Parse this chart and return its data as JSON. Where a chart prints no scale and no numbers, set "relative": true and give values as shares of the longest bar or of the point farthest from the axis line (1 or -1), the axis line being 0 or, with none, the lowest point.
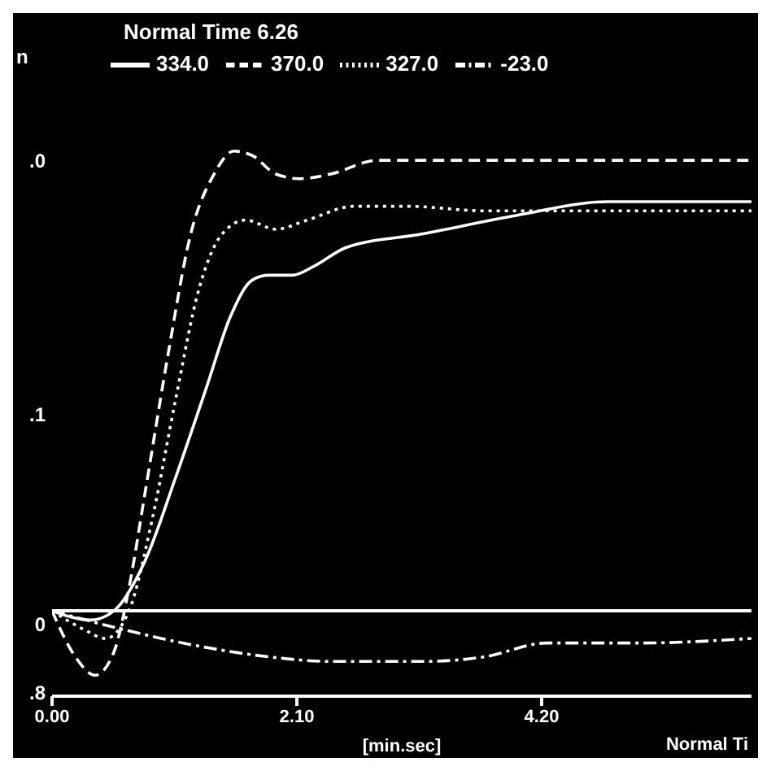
{
  "chart_data": {
    "type": "line",
    "title": "Normal Time 6.26",
    "xlabel": "[min.sec]",
    "ylabel": "n",
    "relative": true,
    "legend": "top",
    "grid": false,
    "marker": "none",
    "xlim": [
      0,
      6.0
    ],
    "xticks": [
      {
        "value": 0,
        "label": "0.00"
      },
      {
        "value": 2.1,
        "label": "2.10"
      },
      {
        "value": 4.2,
        "label": "4.20"
      }
    ],
    "ref_lines": [
      {
        "axis": "y",
        "value": 0,
        "label": null,
        "color": "#ffffff",
        "line_style": "solid"
      }
    ],
    "annotations": [
      ".0",
      ".1",
      "0",
      ".8",
      "Normal Ti"
    ],
    "series": [
      {
        "name": "334.0",
        "color": "#ffffff",
        "line_style": "solid",
        "x": [
          0,
          0.33,
          0.53,
          0.8,
          1.06,
          1.33,
          1.53,
          1.72,
          1.86,
          2.06,
          2.25,
          2.52,
          3.18,
          3.98,
          4.77,
          6.0
        ],
        "values": [
          0,
          -0.02,
          0,
          0.11,
          0.29,
          0.49,
          0.64,
          0.72,
          0.73,
          0.73,
          0.75,
          0.79,
          0.82,
          0.86,
          0.89,
          0.89
        ]
      },
      {
        "name": "370.0",
        "color": "#ffffff",
        "line_style": "dashed",
        "x": [
          0,
          0.2,
          0.37,
          0.53,
          0.66,
          0.8,
          0.99,
          1.19,
          1.39,
          1.56,
          1.72,
          1.92,
          2.12,
          2.39,
          2.79,
          3.45,
          6.0
        ],
        "values": [
          0,
          -0.1,
          -0.14,
          -0.09,
          0.05,
          0.26,
          0.55,
          0.82,
          0.95,
          1.0,
          0.99,
          0.95,
          0.94,
          0.95,
          0.98,
          0.98,
          0.98
        ]
      },
      {
        "name": "327.0",
        "color": "#ffffff",
        "line_style": "dotted",
        "x": [
          0,
          0.27,
          0.46,
          0.66,
          0.86,
          1.06,
          1.26,
          1.46,
          1.66,
          1.92,
          2.19,
          2.59,
          3.05,
          3.71,
          6.0
        ],
        "values": [
          0,
          -0.04,
          -0.06,
          0,
          0.2,
          0.46,
          0.7,
          0.82,
          0.85,
          0.83,
          0.85,
          0.88,
          0.88,
          0.87,
          0.87
        ]
      },
      {
        "name": "-23.0",
        "color": "#ffffff",
        "line_style": "dashdot",
        "x": [
          0,
          0.6,
          1.33,
          1.86,
          2.39,
          3.18,
          3.71,
          4.24,
          5.04,
          6.0
        ],
        "values": [
          0,
          -0.04,
          -0.08,
          -0.1,
          -0.11,
          -0.11,
          -0.1,
          -0.07,
          -0.07,
          -0.06
        ]
      }
    ]
  }
}
